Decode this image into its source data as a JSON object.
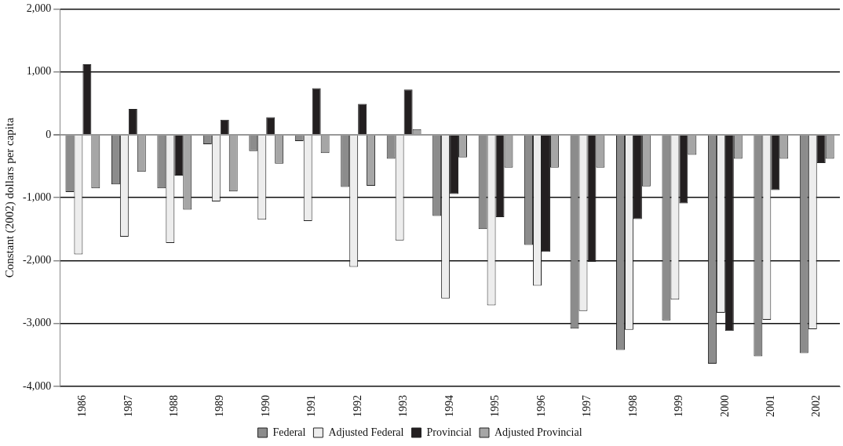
{
  "chart_data": {
    "type": "bar",
    "ylabel": "Constant (2002) dollars per capita",
    "categories": [
      "1986",
      "1987",
      "1988",
      "1989",
      "1990",
      "1991",
      "1992",
      "1993",
      "1994",
      "1995",
      "1996",
      "1997",
      "1998",
      "1999",
      "2000",
      "2001",
      "2002"
    ],
    "series": [
      {
        "name": "Federal",
        "color": "#8c8c8c",
        "values": [
          -910,
          -790,
          -850,
          -150,
          -260,
          -100,
          -830,
          -380,
          -1290,
          -1500,
          -1750,
          -3080,
          -3420,
          -2950,
          -3640,
          -3520,
          -3470
        ]
      },
      {
        "name": "Adjusted Federal",
        "color": "#ededed",
        "values": [
          -1900,
          -1620,
          -1720,
          -1060,
          -1350,
          -1370,
          -2100,
          -1680,
          -2600,
          -2710,
          -2400,
          -2800,
          -3100,
          -2620,
          -2830,
          -2940,
          -3090
        ]
      },
      {
        "name": "Provincial",
        "color": "#231f20",
        "values": [
          1120,
          410,
          -650,
          240,
          280,
          740,
          490,
          720,
          -940,
          -1310,
          -1860,
          -2020,
          -1340,
          -1090,
          -3120,
          -880,
          -450
        ]
      },
      {
        "name": "Adjusted Provincial",
        "color": "#a6a6a6",
        "values": [
          -850,
          -590,
          -1190,
          -900,
          -460,
          -290,
          -810,
          90,
          -360,
          -520,
          -520,
          -520,
          -820,
          -320,
          -380,
          -380,
          -380
        ]
      }
    ],
    "ylim": [
      -4000,
      2000
    ],
    "yticks": [
      {
        "value": -4000,
        "label": "-4,000"
      },
      {
        "value": -3000,
        "label": "-3,000"
      },
      {
        "value": -2000,
        "label": "-2,000"
      },
      {
        "value": -1000,
        "label": "-1,000"
      },
      0,
      {
        "value": 1000,
        "label": "1,000"
      },
      {
        "value": 2000,
        "label": "2,000"
      }
    ],
    "grid": "y",
    "legend": "bottom"
  }
}
